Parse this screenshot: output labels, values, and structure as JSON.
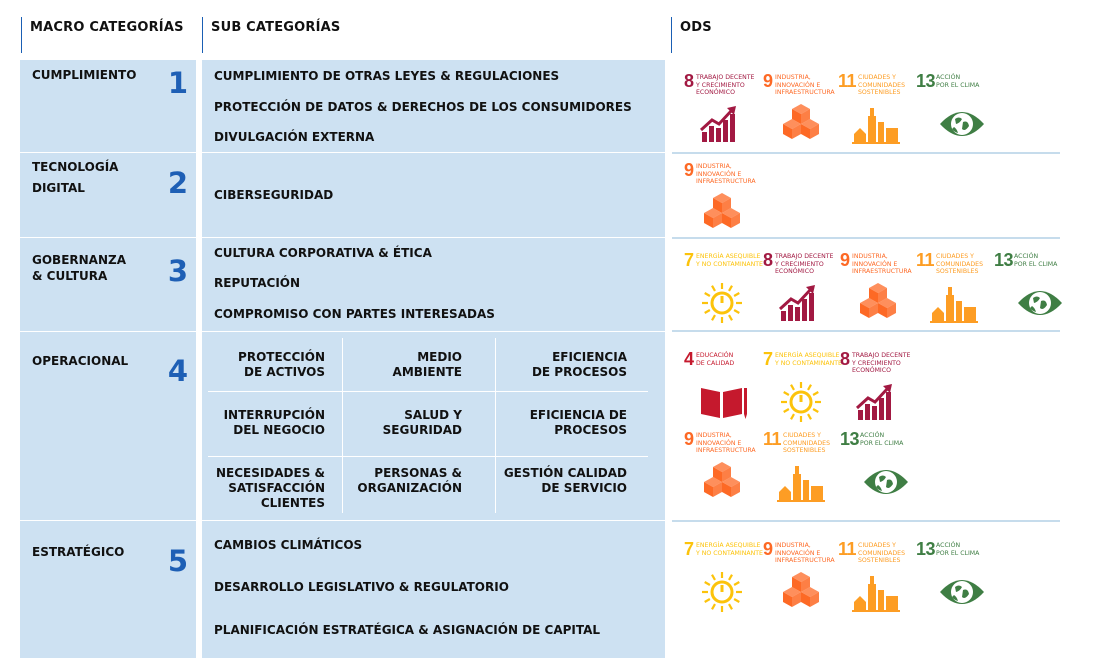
{
  "headers": {
    "macro": "MACRO CATEGORÍAS",
    "sub": "SUB CATEGORÍAS",
    "ods": "ODS"
  },
  "macros": [
    {
      "title": "CUMPLIMIENTO",
      "num": "1"
    },
    {
      "title_line1": "TECNOLOGÍA",
      "title_line2": "DIGITAL",
      "num": "2"
    },
    {
      "title_line1": "GOBERNANZA",
      "title_line2": "& CULTURA",
      "num": "3"
    },
    {
      "title": "OPERACIONAL",
      "num": "4"
    },
    {
      "title": "ESTRATÉGICO",
      "num": "5"
    }
  ],
  "subs": {
    "g1": [
      "CUMPLIMIENTO DE OTRAS LEYES & REGULACIONES",
      "PROTECCIÓN DE DATOS & DERECHOS DE LOS CONSUMIDORES",
      "DIVULGACIÓN EXTERNA"
    ],
    "g2": [
      "CIBERSEGURIDAD"
    ],
    "g3": [
      "CULTURA CORPORATIVA & ÉTICA",
      "REPUTACIÓN",
      "COMPROMISO CON PARTES INTERESADAS"
    ],
    "g4": [
      [
        "PROTECCIÓN",
        "DE ACTIVOS"
      ],
      [
        "MEDIO",
        "AMBIENTE"
      ],
      [
        "EFICIENCIA",
        "DE PROCESOS"
      ],
      [
        "INTERRUPCIÓN",
        "DEL NEGOCIO"
      ],
      [
        "SALUD Y",
        "SEGURIDAD"
      ],
      [
        "EFICIENCIA DE",
        "PROCESOS"
      ],
      [
        "NECESIDADES &",
        "SATISFACCIÓN",
        "CLIENTES"
      ],
      [
        "PERSONAS &",
        "ORGANIZACIÓN"
      ],
      [
        "GESTIÓN CALIDAD",
        "DE SERVICIO"
      ]
    ],
    "g5": [
      "CAMBIOS CLIMÁTICOS",
      "DESARROLLO LEGISLATIVO & REGULATORIO",
      "PLANIFICACIÓN ESTRATÉGICA & ASIGNACIÓN DE CAPITAL"
    ]
  },
  "sdg": {
    "4": {
      "num": "4",
      "l1": "EDUCACIÓN",
      "l2": "DE CALIDAD",
      "l3": "",
      "color": "#c5192d"
    },
    "7": {
      "num": "7",
      "l1": "ENERGÍA ASEQUIBLE",
      "l2": "Y NO CONTAMINANTE",
      "l3": "",
      "color": "#fcc30b"
    },
    "8": {
      "num": "8",
      "l1": "TRABAJO DECENTE",
      "l2": "Y CRECIMIENTO",
      "l3": "ECONÓMICO",
      "color": "#a21942"
    },
    "9": {
      "num": "9",
      "l1": "INDUSTRIA,",
      "l2": "INNOVACIÓN E",
      "l3": "INFRAESTRUCTURA",
      "color": "#fd6925"
    },
    "11": {
      "num": "11",
      "l1": "CIUDADES Y",
      "l2": "COMUNIDADES",
      "l3": "SOSTENIBLES",
      "color": "#fd9d24"
    },
    "13": {
      "num": "13",
      "l1": "ACCIÓN",
      "l2": "POR EL CLIMA",
      "l3": "",
      "color": "#3f7e44"
    }
  }
}
